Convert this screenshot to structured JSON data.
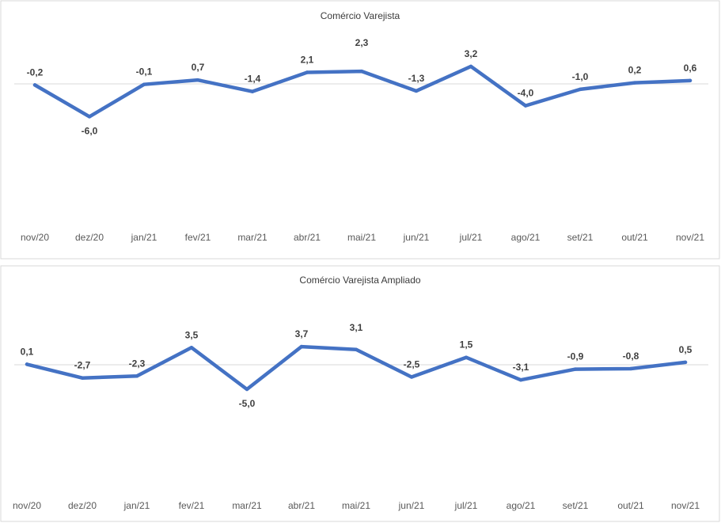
{
  "chart_data": [
    {
      "type": "line",
      "title": "Comércio Varejista",
      "categories": [
        "nov/20",
        "dez/20",
        "jan/21",
        "fev/21",
        "mar/21",
        "abr/21",
        "mai/21",
        "jun/21",
        "jul/21",
        "ago/21",
        "set/21",
        "out/21",
        "nov/21"
      ],
      "values": [
        -0.2,
        -6.0,
        -0.1,
        0.7,
        -1.4,
        2.1,
        2.3,
        -1.3,
        3.2,
        -4.0,
        -1.0,
        0.2,
        0.6
      ],
      "data_labels": [
        "-0,2",
        "-6,0",
        "-0,1",
        "0,7",
        "-1,4",
        "2,1",
        "2,3",
        "-1,3",
        "3,2",
        "-4,0",
        "-1,0",
        "0,2",
        "0,6"
      ],
      "color": "#4472c4",
      "grid": false,
      "legend": "none"
    },
    {
      "type": "line",
      "title": "Comércio Varejista Ampliado",
      "categories": [
        "nov/20",
        "dez/20",
        "jan/21",
        "fev/21",
        "mar/21",
        "abr/21",
        "mai/21",
        "jun/21",
        "jul/21",
        "ago/21",
        "set/21",
        "out/21",
        "nov/21"
      ],
      "values": [
        0.1,
        -2.7,
        -2.3,
        3.5,
        -5.0,
        3.7,
        3.1,
        -2.5,
        1.5,
        -3.1,
        -0.9,
        -0.8,
        0.5
      ],
      "data_labels": [
        "0,1",
        "-2,7",
        "-2,3",
        "3,5",
        "-5,0",
        "3,7",
        "3,1",
        "-2,5",
        "1,5",
        "-3,1",
        "-0,9",
        "-0,8",
        "0,5"
      ],
      "color": "#4472c4",
      "grid": false,
      "legend": "none"
    }
  ]
}
